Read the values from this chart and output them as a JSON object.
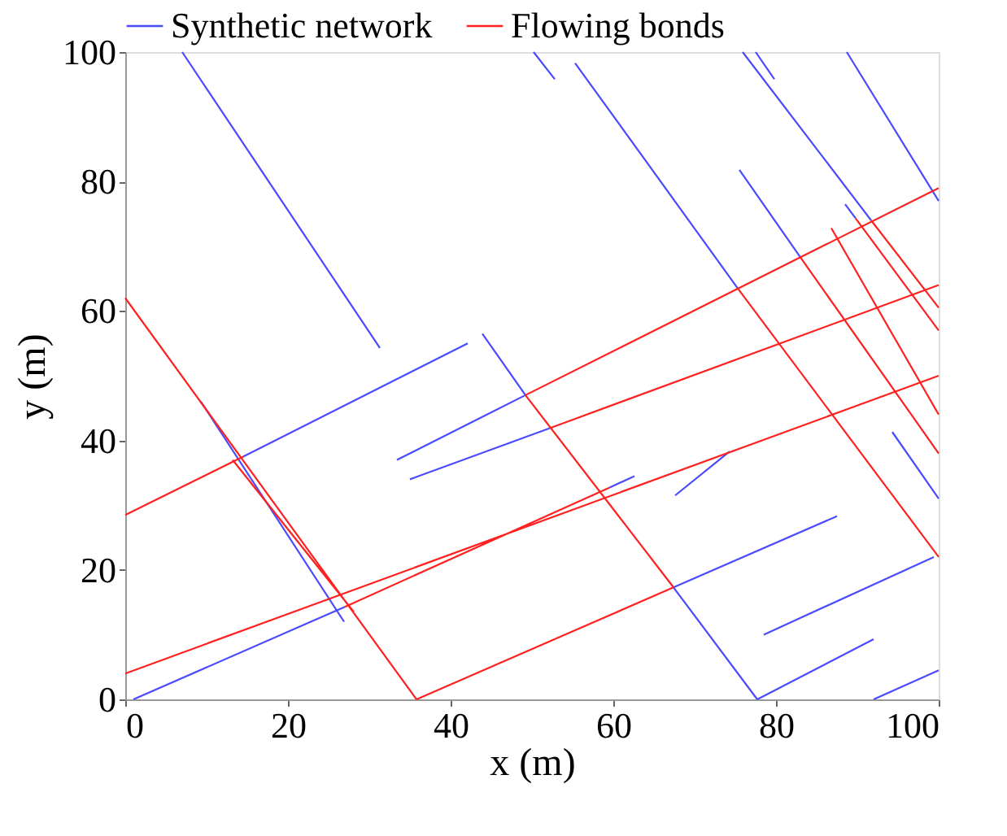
{
  "chart_data": {
    "type": "line",
    "xlabel": "x (m)",
    "ylabel": "y (m)",
    "xlim": [
      0,
      100
    ],
    "ylim": [
      0,
      100
    ],
    "xticks": [
      0,
      20,
      40,
      60,
      80,
      100
    ],
    "yticks": [
      0,
      20,
      40,
      60,
      80,
      100
    ],
    "grid": false,
    "legend": "top",
    "marker": "none",
    "line_style": "solid",
    "series": [
      {
        "name": "Synthetic network",
        "color": "#4a4aff",
        "x": [
          7,
          31.3,
          null,
          9.3,
          26.9,
          null,
          14.5,
          42.1,
          null,
          1,
          27,
          null,
          59.5,
          62.6,
          null,
          43.9,
          49.2,
          null,
          33.4,
          49.2,
          null,
          35,
          52.4,
          null,
          50.2,
          52.8,
          null,
          55.3,
          75.3,
          null,
          75.9,
          91.7,
          null,
          77.5,
          79.8,
          null,
          88.7,
          100,
          null,
          75.5,
          83,
          null,
          88.5,
          89.8,
          null,
          67.6,
          74.3,
          null,
          67.4,
          87.5,
          null,
          67.4,
          77.7,
          null,
          78.5,
          99.4,
          null,
          77.7,
          92,
          null,
          92,
          100,
          null,
          94.3,
          100
        ],
        "values": [
          100,
          54.3,
          null,
          46,
          12,
          null,
          37.5,
          55,
          null,
          0,
          14.3,
          null,
          32.7,
          34.5,
          null,
          56.5,
          47,
          null,
          37,
          47,
          null,
          34,
          42,
          null,
          100,
          95.8,
          null,
          98.3,
          63.5,
          null,
          100,
          74,
          null,
          100,
          95.8,
          null,
          100,
          77,
          null,
          81.8,
          68.3,
          null,
          76.5,
          74.3,
          null,
          31.5,
          38.3,
          null,
          17.3,
          28.3,
          null,
          17.3,
          0,
          null,
          10,
          22,
          null,
          0,
          9.3,
          null,
          0,
          4.5,
          null,
          41.3,
          31
        ]
      },
      {
        "name": "Flowing bonds",
        "color": "#ff2020",
        "x": [
          0,
          35.8,
          null,
          13.2,
          28.1,
          null,
          0,
          14.5,
          null,
          0,
          100,
          null,
          27,
          59.5,
          null,
          35.8,
          67.4,
          null,
          49.2,
          67.4,
          null,
          49.2,
          100,
          null,
          52.4,
          100,
          null,
          75.3,
          100,
          null,
          91.7,
          100,
          null,
          83,
          100,
          null,
          86.8,
          100,
          null,
          89.8,
          100
        ],
        "values": [
          62,
          0,
          null,
          37,
          13.5,
          null,
          28.5,
          37.5,
          null,
          4,
          50,
          null,
          14.3,
          32.7,
          null,
          0,
          17.3,
          null,
          47,
          17.3,
          null,
          47,
          79,
          null,
          42,
          64,
          null,
          63.5,
          22,
          null,
          74,
          60.5,
          null,
          68.3,
          38,
          null,
          72.8,
          44,
          null,
          74.3,
          57
        ]
      }
    ]
  }
}
